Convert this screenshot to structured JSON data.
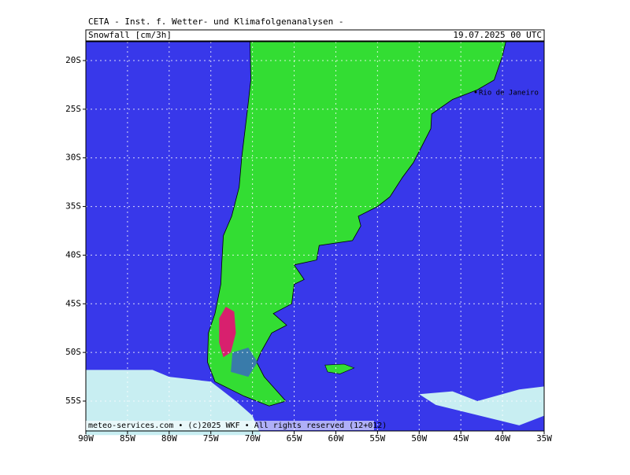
{
  "header": {
    "title": "CETA - Inst. f. Wetter- und Klimafolgenanalysen -",
    "variable": "Snowfall [cm/3h]",
    "valid_time": "19.07.2025 00 UTC"
  },
  "map": {
    "lat_labels": [
      "20S",
      "25S",
      "30S",
      "35S",
      "40S",
      "45S",
      "50S",
      "55S"
    ],
    "lon_labels": [
      "90W",
      "85W",
      "80W",
      "75W",
      "70W",
      "65W",
      "60W",
      "55W",
      "50W",
      "45W",
      "40W",
      "35W"
    ],
    "place_labels": [
      "Rio de Janeiro"
    ]
  },
  "footer": "meteo-services.com • (c)2025 WKF • All rights reserved (12+012)"
}
